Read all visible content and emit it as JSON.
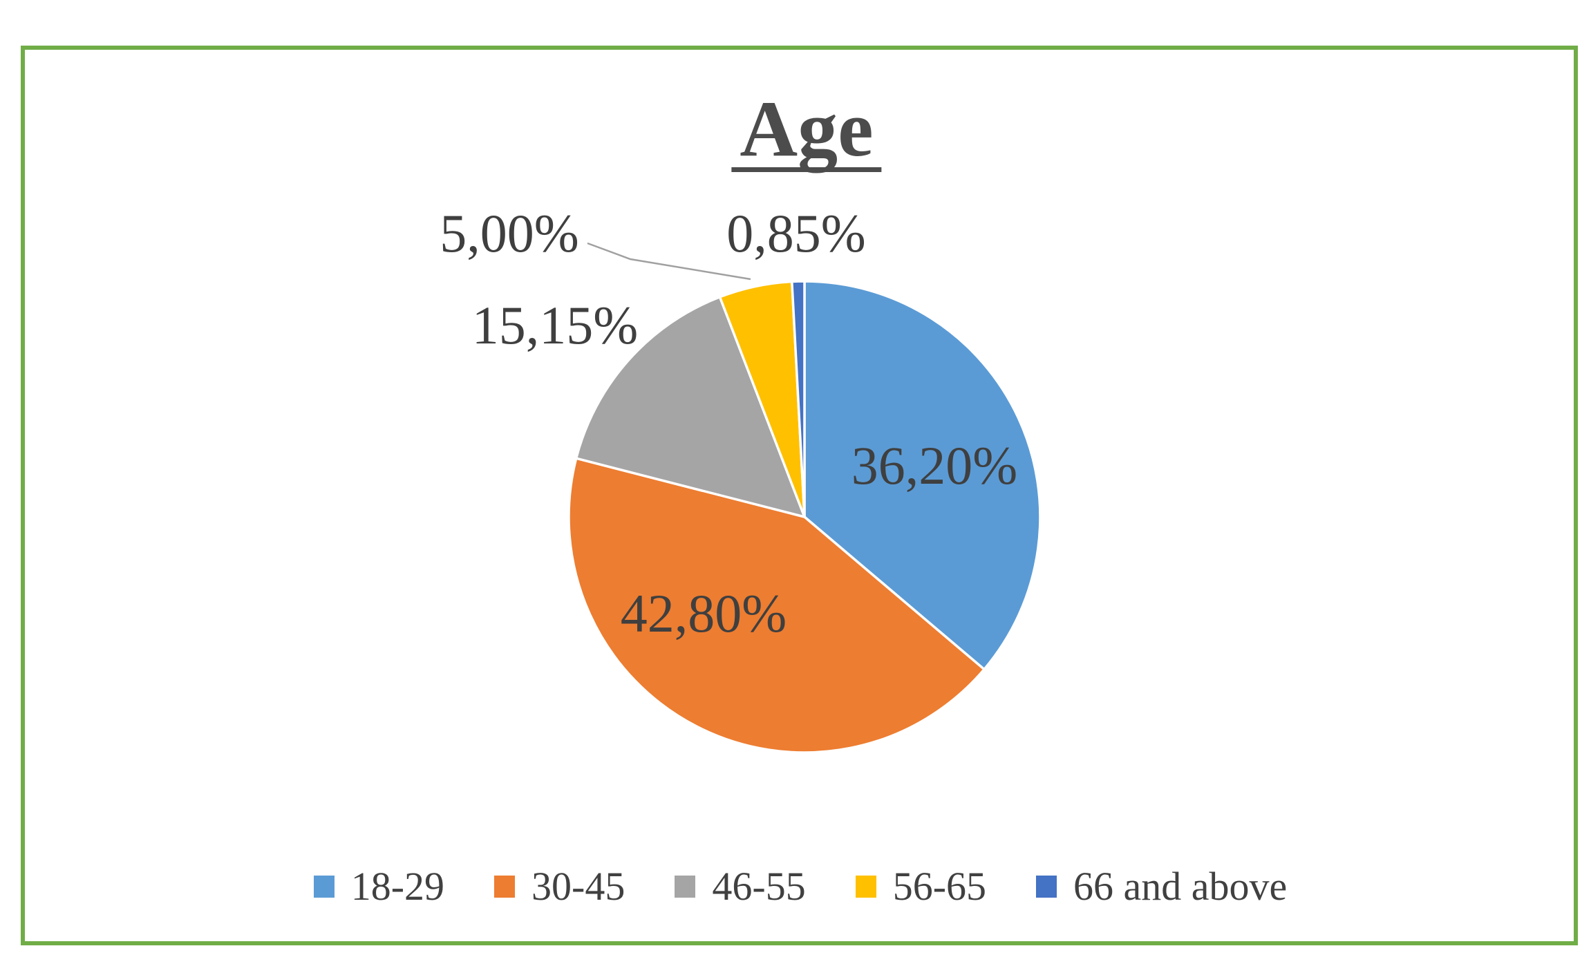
{
  "page": {
    "background": "#ffffff",
    "frame_border_color": "#70ad47",
    "title_color": "#4c4c4c",
    "label_text_color": "#3f3f3f",
    "legend_text_color": "#404040",
    "leader_line_color": "#a0a0a0"
  },
  "chart_data": {
    "type": "pie",
    "title": "Age",
    "categories": [
      "18-29",
      "30-45",
      "46-55",
      "56-65",
      "66 and above"
    ],
    "values": [
      36.2,
      42.8,
      15.15,
      5.0,
      0.85
    ],
    "value_labels": [
      "36,20%",
      "42,80%",
      "15,15%",
      "5,00%",
      "0,85%"
    ],
    "colors": [
      "#5b9bd5",
      "#ed7d31",
      "#a5a5a5",
      "#ffc000",
      "#4472c4"
    ],
    "start_angle_deg": 0,
    "direction": "clockwise",
    "slice_separator_color": "#ffffff",
    "legend_position": "bottom",
    "label_positions": [
      "inside",
      "inside",
      "outside",
      "outside-with-leader-line",
      "outside"
    ],
    "number_format": "percent with comma decimal separator"
  }
}
